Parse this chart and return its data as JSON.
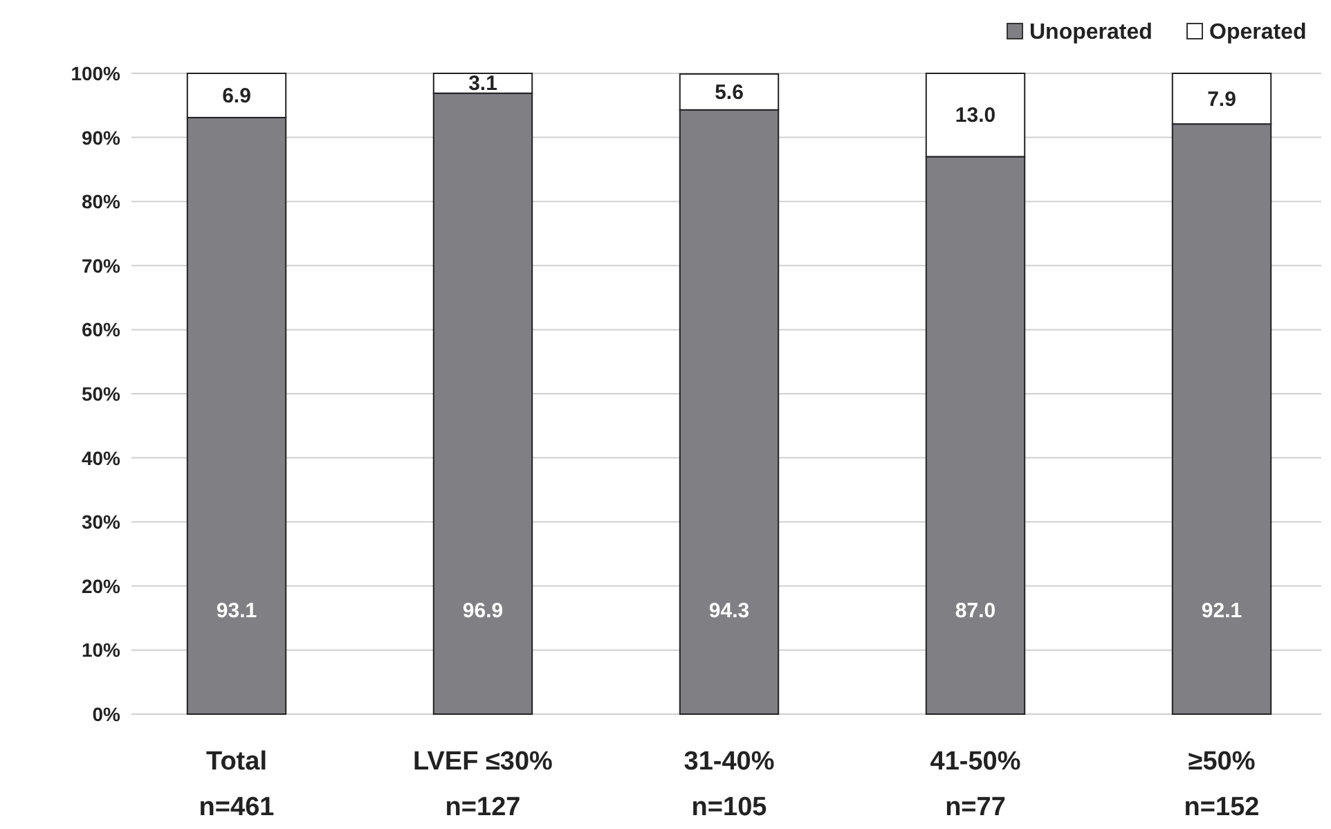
{
  "chart_data": {
    "type": "bar",
    "stacked": true,
    "categories": [
      "Total\nn=461",
      "LVEF ≤30%\nn=127",
      "31-40%\nn=105",
      "41-50%\nn=77",
      "≥50%\nn=152"
    ],
    "series": [
      {
        "name": "Unoperated",
        "color": "#7f7f84",
        "values": [
          93.1,
          96.9,
          94.3,
          87.0,
          92.1
        ],
        "value_labels": [
          "93.1",
          "96.9",
          "94.3",
          "87.0",
          "92.1"
        ]
      },
      {
        "name": "Operated",
        "color": "#ffffff",
        "values": [
          6.9,
          3.1,
          5.6,
          13.0,
          7.9
        ],
        "value_labels": [
          "6.9",
          "3.1",
          "5.6",
          "13.0",
          "7.9"
        ]
      }
    ],
    "ylim": [
      0,
      100
    ],
    "yticks": [
      {
        "value": 0,
        "label": "0%"
      },
      {
        "value": 10,
        "label": "10%"
      },
      {
        "value": 20,
        "label": "20%"
      },
      {
        "value": 30,
        "label": "30%"
      },
      {
        "value": 40,
        "label": "40%"
      },
      {
        "value": 50,
        "label": "50%"
      },
      {
        "value": 60,
        "label": "60%"
      },
      {
        "value": 70,
        "label": "70%"
      },
      {
        "value": 80,
        "label": "80%"
      },
      {
        "value": 90,
        "label": "90%"
      },
      {
        "value": 100,
        "label": "100%"
      }
    ],
    "grid": "y",
    "legend": "top right"
  }
}
